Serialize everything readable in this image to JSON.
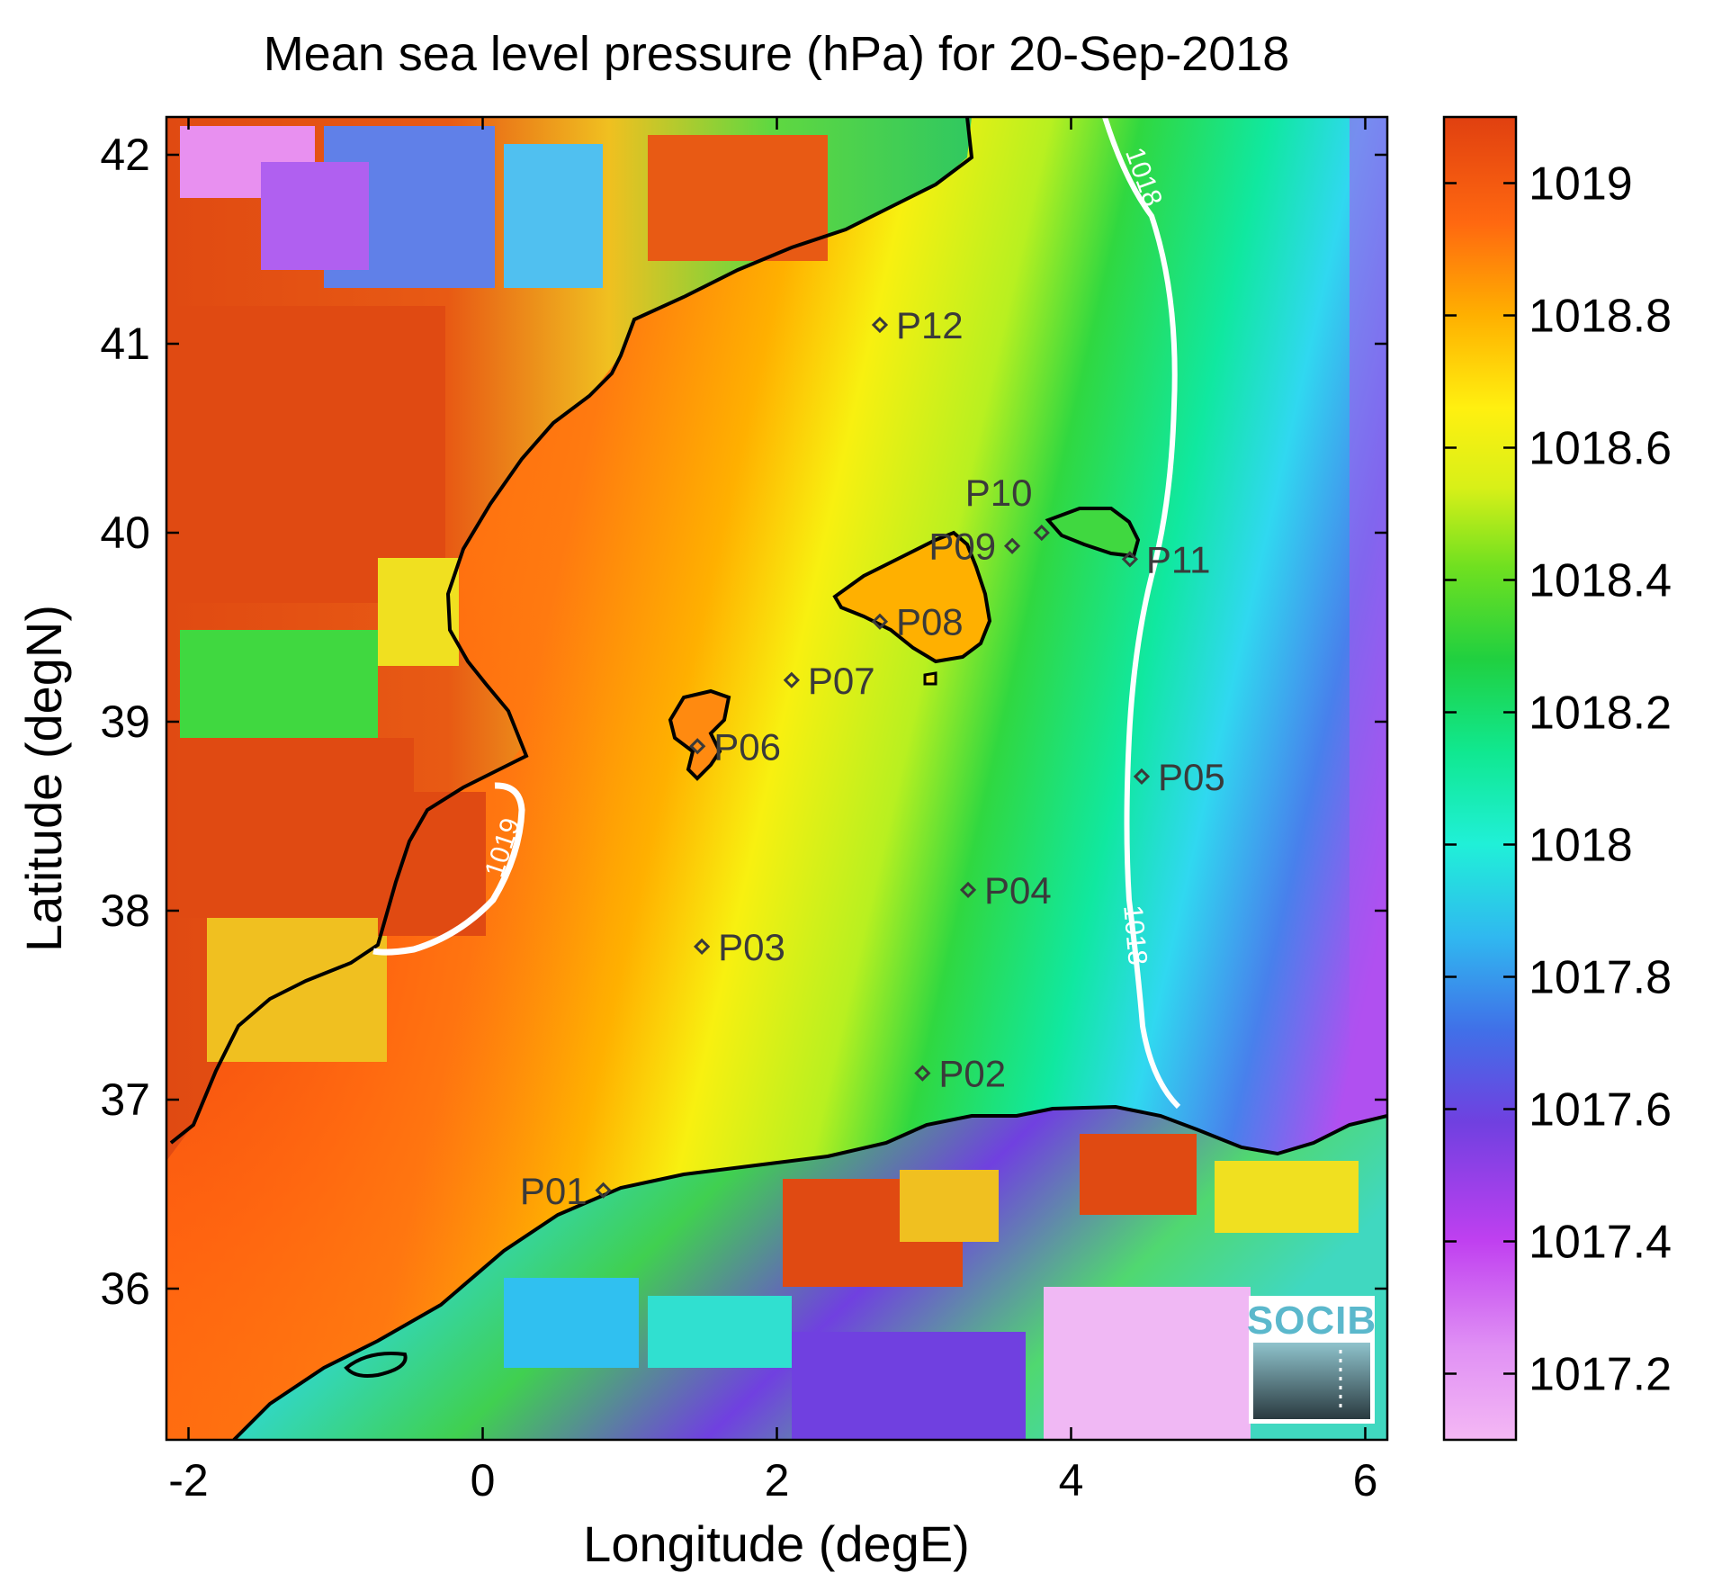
{
  "chart_data": {
    "type": "heatmap",
    "title": "Mean sea level pressure (hPa) for 20-Sep-2018",
    "xlabel": "Longitude (degE)",
    "ylabel": "Latitude (degN)",
    "xlim": [
      -2.15,
      6.15
    ],
    "ylim": [
      35.2,
      42.2
    ],
    "x_ticks": [
      -2,
      0,
      2,
      4,
      6
    ],
    "y_ticks": [
      36,
      37,
      38,
      39,
      40,
      41,
      42
    ],
    "colorbar": {
      "range": [
        1017.1,
        1019.1
      ],
      "ticks": [
        1017.2,
        1017.4,
        1017.6,
        1017.8,
        1018,
        1018.2,
        1018.4,
        1018.6,
        1018.8,
        1019
      ],
      "tick_labels": [
        "1017.2",
        "1017.4",
        "1017.6",
        "1017.8",
        "1018",
        "1018.2",
        "1018.4",
        "1018.6",
        "1018.8",
        "1019"
      ],
      "colormap": [
        "#f4b8f4",
        "#c040f0",
        "#7040e0",
        "#4080f0",
        "#20e8f0",
        "#10f0a0",
        "#20d840",
        "#b0f020",
        "#ffff10",
        "#ffb000",
        "#ff6010",
        "#e04010"
      ]
    },
    "contours": [
      {
        "level": "1018",
        "color": "#ffffff"
      },
      {
        "level": "1019",
        "color": "#ffffff"
      }
    ],
    "stations": [
      {
        "name": "P01",
        "lon": 0.82,
        "lat": 36.52
      },
      {
        "name": "P02",
        "lon": 2.99,
        "lat": 37.14
      },
      {
        "name": "P03",
        "lon": 1.49,
        "lat": 37.81
      },
      {
        "name": "P04",
        "lon": 3.3,
        "lat": 38.11
      },
      {
        "name": "P05",
        "lon": 4.48,
        "lat": 38.71
      },
      {
        "name": "P06",
        "lon": 1.46,
        "lat": 38.87
      },
      {
        "name": "P07",
        "lon": 2.1,
        "lat": 39.22
      },
      {
        "name": "P08",
        "lon": 2.7,
        "lat": 39.53
      },
      {
        "name": "P09",
        "lon": 3.6,
        "lat": 39.93
      },
      {
        "name": "P10",
        "lon": 3.8,
        "lat": 40.0
      },
      {
        "name": "P11",
        "lon": 4.4,
        "lat": 39.86
      },
      {
        "name": "P12",
        "lon": 2.7,
        "lat": 41.1
      }
    ],
    "legend_placement": "colorbar-right",
    "grid": false
  },
  "logo": {
    "text": "SOCIB"
  }
}
